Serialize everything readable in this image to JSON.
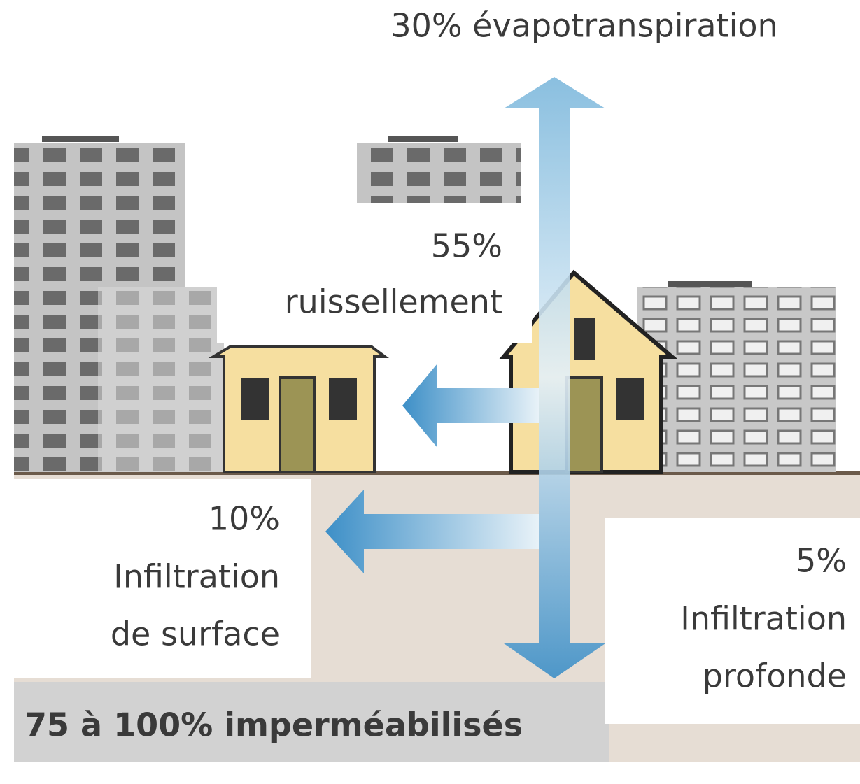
{
  "title": "30% évapotranspiration",
  "runoff": {
    "percent": "55%",
    "label": "ruissellement"
  },
  "surface_infiltration": {
    "percent": "10%",
    "label_lines": [
      "Infiltration",
      "de surface"
    ]
  },
  "deep_infiltration": {
    "percent": "5%",
    "label_lines": [
      "Infiltration",
      "profonde"
    ]
  },
  "footer": "75 à 100% imperméabilisés"
}
